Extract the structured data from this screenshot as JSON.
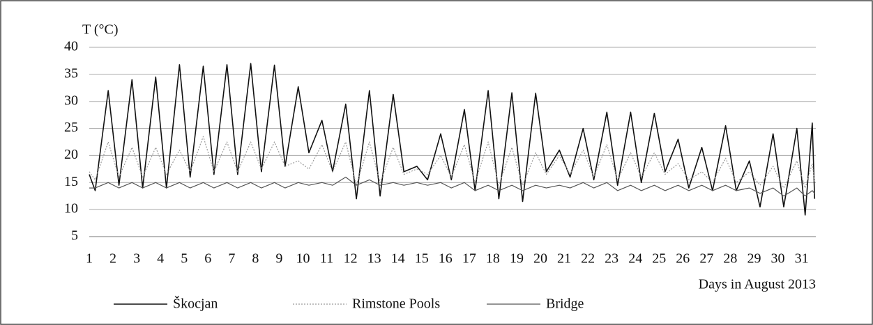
{
  "chart_data": {
    "type": "line",
    "y_label": "T (°C)",
    "x_label": "Days in August 2013",
    "x": [
      1,
      1.25,
      1.8,
      2.25,
      2.8,
      3.25,
      3.8,
      4.25,
      4.8,
      5.25,
      5.8,
      6.25,
      6.8,
      7.25,
      7.8,
      8.25,
      8.8,
      9.25,
      9.8,
      10.25,
      10.8,
      11.25,
      11.8,
      12.25,
      12.8,
      13.25,
      13.8,
      14.25,
      14.8,
      15.25,
      15.8,
      16.25,
      16.8,
      17.25,
      17.8,
      18.25,
      18.8,
      19.25,
      19.8,
      20.25,
      20.8,
      21.25,
      21.8,
      22.25,
      22.8,
      23.25,
      23.8,
      24.25,
      24.8,
      25.25,
      25.8,
      26.25,
      26.8,
      27.25,
      27.8,
      28.25,
      28.8,
      29.25,
      29.8,
      30.25,
      30.8,
      31.15,
      31.45,
      31.55
    ],
    "series": [
      {
        "name": "Škocjan",
        "color": "#111111",
        "style": "solid",
        "values": [
          16.5,
          13.5,
          32,
          14.5,
          34,
          14,
          34.5,
          14,
          36.8,
          16,
          36.5,
          16.5,
          36.8,
          16.5,
          37,
          17,
          36.7,
          18,
          32.7,
          20.5,
          26.5,
          17,
          29.5,
          12,
          32,
          12.5,
          31.3,
          17,
          18,
          15.5,
          24,
          15.5,
          28.5,
          13.5,
          32,
          12,
          31.6,
          11.5,
          31.5,
          17,
          21,
          16,
          25,
          15.5,
          28,
          14.5,
          28,
          15,
          27.8,
          17,
          23,
          14,
          21.5,
          13.5,
          25.5,
          13.5,
          19,
          10.5,
          24,
          10.5,
          25,
          9,
          26,
          12
        ]
      },
      {
        "name": "Rimstone Pools",
        "color": "#999999",
        "style": "dotted",
        "values": [
          17,
          15.5,
          22.5,
          16,
          21.5,
          16,
          21.5,
          16.5,
          21,
          17,
          23.5,
          17,
          22.5,
          17,
          22.5,
          17.5,
          22.5,
          18,
          19,
          17.5,
          22,
          17,
          22.5,
          14.5,
          22.5,
          15,
          21.5,
          16.5,
          17.5,
          16.5,
          20,
          16,
          22,
          15,
          22.5,
          14.5,
          21.5,
          14.5,
          20.5,
          16.5,
          20,
          16.5,
          21,
          16,
          22,
          15.5,
          20.5,
          16,
          20.5,
          16.5,
          18.5,
          15.5,
          17,
          15,
          19.5,
          15,
          17,
          14.5,
          18,
          14,
          19,
          14,
          18.5,
          15
        ]
      },
      {
        "name": "Bridge",
        "color": "#555555",
        "style": "solid",
        "values": [
          14,
          14,
          15,
          14,
          15,
          14,
          15,
          14,
          15,
          14,
          15,
          14,
          15,
          14,
          15,
          14,
          15,
          14,
          15,
          14.5,
          15,
          14.5,
          16,
          14.5,
          15.5,
          14.5,
          15,
          14.5,
          15,
          14.5,
          15,
          14,
          15,
          13.5,
          14.5,
          13.5,
          14.5,
          13.5,
          14.5,
          14,
          14.5,
          14,
          15,
          14,
          15,
          13.5,
          14.5,
          13.5,
          14.5,
          13.5,
          14.5,
          13.5,
          14.5,
          13.5,
          14.5,
          13.5,
          14,
          13,
          14,
          12.5,
          14,
          12.5,
          13.5,
          13
        ]
      }
    ],
    "xlim": [
      1,
      31.6
    ],
    "xticks": [
      1,
      2,
      3,
      4,
      5,
      6,
      7,
      8,
      9,
      10,
      11,
      12,
      13,
      14,
      15,
      16,
      17,
      18,
      19,
      20,
      21,
      22,
      23,
      24,
      25,
      26,
      27,
      28,
      29,
      30,
      31
    ],
    "ylim": [
      5,
      40
    ],
    "yticks": [
      5,
      10,
      15,
      20,
      25,
      30,
      35,
      40
    ],
    "grid": true
  }
}
